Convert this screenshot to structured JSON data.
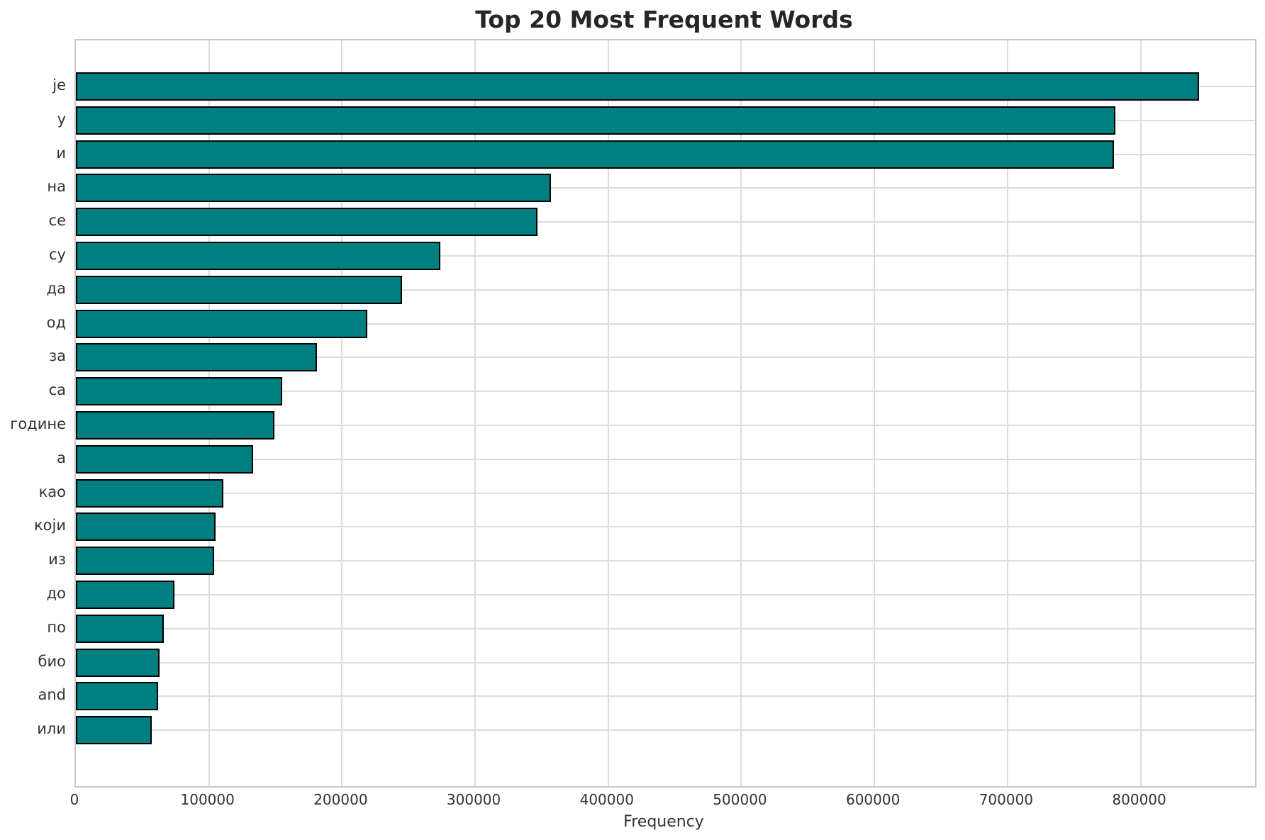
{
  "chart_data": {
    "type": "bar",
    "orientation": "horizontal",
    "title": "Top 20 Most Frequent Words",
    "xlabel": "Frequency",
    "ylabel": "",
    "categories": [
      "је",
      "у",
      "и",
      "на",
      "се",
      "су",
      "да",
      "од",
      "за",
      "са",
      "године",
      "а",
      "као",
      "који",
      "из",
      "до",
      "по",
      "био",
      "and",
      "или"
    ],
    "values": [
      844000,
      781000,
      780000,
      357000,
      347000,
      274000,
      245000,
      219000,
      181000,
      155000,
      149000,
      133000,
      111000,
      105000,
      104000,
      74000,
      66000,
      63000,
      62000,
      57000
    ],
    "x_ticks": [
      0,
      100000,
      200000,
      300000,
      400000,
      500000,
      600000,
      700000,
      800000
    ],
    "xlim": [
      0,
      886000
    ],
    "grid": true,
    "legend": false,
    "colors": {
      "bar_fill": "#007F80",
      "bar_edge": "#000000",
      "grid": "#DCDCDC",
      "spine": "#C8C8C8",
      "title": "#262626",
      "tick_labels": "#333333",
      "background": "#FFFFFF"
    }
  }
}
